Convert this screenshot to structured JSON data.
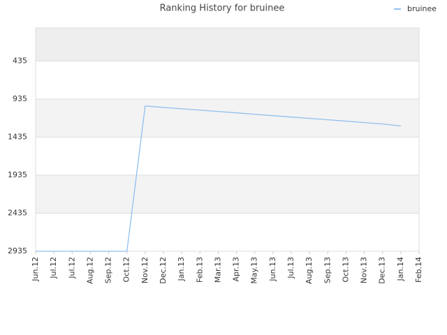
{
  "chart_data": {
    "type": "line",
    "title": "Ranking History for bruinee",
    "categories": [
      "Jun.12",
      "Jul.12",
      "Jul.12",
      "Aug.12",
      "Sep.12",
      "Oct.12",
      "Nov.12",
      "Dec.12",
      "Jan.13",
      "Feb.13",
      "Mar.13",
      "Apr.13",
      "May.13",
      "Jun.13",
      "Jul.13",
      "Aug.13",
      "Sep.13",
      "Oct.13",
      "Nov.13",
      "Dec.13",
      "Jan.14",
      "Feb.14"
    ],
    "series": [
      {
        "name": "bruinee",
        "color": "#90c0ee",
        "values": [
          2935,
          2935,
          2935,
          2935,
          2935,
          2935,
          1025,
          1045,
          1063,
          1080,
          1098,
          1116,
          1135,
          1153,
          1171,
          1189,
          1207,
          1225,
          1244,
          1262,
          1289,
          null
        ]
      }
    ],
    "ylim": [
      2935,
      0
    ],
    "yticks": [
      435,
      935,
      1435,
      1935,
      2435,
      2935
    ],
    "grid": true,
    "legend": "top-right"
  }
}
